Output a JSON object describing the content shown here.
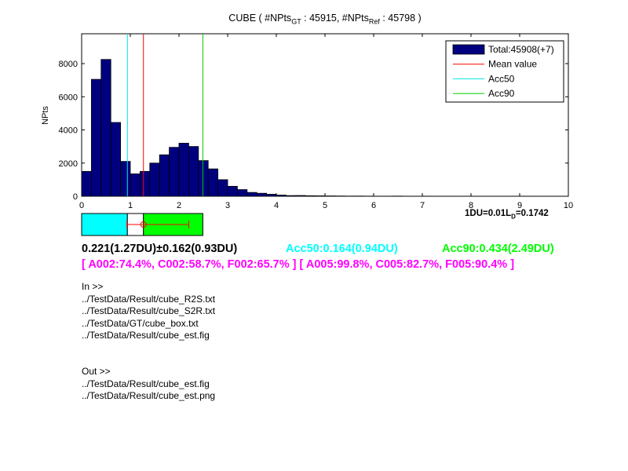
{
  "title": {
    "prefix": "CUBE ( #NPts",
    "sub_gt": "GT",
    "count_gt": " : 45915, #NPts",
    "sub_ref": "Ref",
    "count_ref": " : 45798 )"
  },
  "chart_data": {
    "type": "bar",
    "ylabel": "NPts",
    "xlim": [
      0,
      10
    ],
    "ylim": [
      0,
      9800
    ],
    "x_ticks": [
      "0",
      "1",
      "2",
      "3",
      "4",
      "5",
      "6",
      "7",
      "8",
      "9",
      "10"
    ],
    "y_ticks": [
      "0",
      "2000",
      "4000",
      "6000",
      "8000"
    ],
    "bin_width": 0.2,
    "bin_starts": [
      0,
      0.2,
      0.4,
      0.6,
      0.8,
      1.0,
      1.2,
      1.4,
      1.6,
      1.8,
      2.0,
      2.2,
      2.4,
      2.6,
      2.8,
      3.0,
      3.2,
      3.4,
      3.6,
      3.8,
      4.0,
      4.2,
      4.4,
      4.6,
      4.8,
      5.0,
      5.2,
      5.4,
      5.6,
      5.8,
      6.0,
      6.2,
      6.4,
      6.6,
      6.8,
      7.0,
      7.2,
      7.4,
      7.6,
      7.8,
      8.0,
      8.2,
      8.4,
      8.6,
      8.8,
      9.0,
      9.2,
      9.4,
      9.6,
      9.8
    ],
    "values": [
      1500,
      7050,
      8250,
      4450,
      2100,
      1350,
      1500,
      2000,
      2500,
      2950,
      3200,
      3000,
      2150,
      1650,
      1000,
      600,
      400,
      230,
      180,
      120,
      70,
      40,
      45,
      30,
      25,
      20,
      15,
      10,
      12,
      8,
      6,
      6,
      10,
      5,
      4,
      6,
      3,
      5,
      4,
      3,
      2,
      4,
      3,
      3,
      2,
      5,
      3,
      3,
      2,
      2
    ],
    "bar_color": "#00007f",
    "lines": [
      {
        "name": "Mean value",
        "x": 1.27,
        "color": "#ff0000"
      },
      {
        "name": "Acc50",
        "x": 0.94,
        "color": "#00e5e5"
      },
      {
        "name": "Acc90",
        "x": 2.49,
        "color": "#00cc00"
      }
    ],
    "legend": {
      "placement": "top-right",
      "entries": [
        {
          "label": "Total:45908(+7)",
          "kind": "patch",
          "color": "#00007f"
        },
        {
          "label": "Mean value",
          "kind": "line",
          "color": "#ff0000"
        },
        {
          "label": "Acc50",
          "kind": "line",
          "color": "#00e5e5"
        },
        {
          "label": "Acc90",
          "kind": "line",
          "color": "#00cc00"
        }
      ]
    },
    "summary_box": {
      "acc50": 0.94,
      "mean": 1.27,
      "acc90": 2.49,
      "errorbar_low": 0.93,
      "errorbar_high": 2.2,
      "acc50_color": "#00ffff",
      "acc90_color": "#00ff00"
    }
  },
  "du_label": {
    "prefix": "1DU=0.01L",
    "sub": "D",
    "suffix": "=0.1742"
  },
  "stats": {
    "mean": "0.221(1.27DU)±0.162(0.93DU)",
    "acc50": "Acc50:0.164(0.94DU)",
    "acc90": "Acc90:0.434(2.49DU)",
    "mean_color": "#000000",
    "acc50_color": "#00ffff",
    "acc90_color": "#00ff00"
  },
  "percentages": {
    "text": "[ A002:74.4%, C002:58.7%, F002:65.7% ] [ A005:99.8%, C005:82.7%, F005:90.4% ]",
    "color": "#ff00ff"
  },
  "inputs": {
    "header": "In >>",
    "files": [
      "../TestData/Result/cube_R2S.txt",
      "../TestData/Result/cube_S2R.txt",
      "../TestData/GT/cube_box.txt",
      "../TestData/Result/cube_est.fig"
    ]
  },
  "outputs": {
    "header": "Out >>",
    "files": [
      "../TestData/Result/cube_est.fig",
      "../TestData/Result/cube_est.png"
    ]
  }
}
